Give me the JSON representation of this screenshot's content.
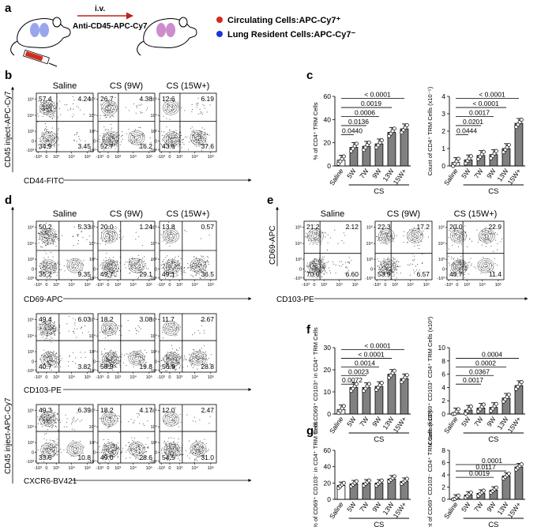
{
  "panel_labels": [
    "a",
    "b",
    "c",
    "d",
    "e",
    "f",
    "g"
  ],
  "panel_a": {
    "injection": "i.v.",
    "antibody": "Anti-CD45-APC-Cy7",
    "legend": [
      {
        "label": "Circulating Cells:APC-Cy7⁺",
        "color": "#d42a1e"
      },
      {
        "label": "Lung Resident Cells:APC-Cy7⁻",
        "color": "#1e35d6"
      }
    ]
  },
  "ticks_x": [
    "-10³",
    "0",
    "10³",
    "10⁴",
    "10⁵"
  ],
  "ticks_y": [
    "-10³",
    "0",
    "10³",
    "10⁴",
    "10⁵"
  ],
  "flow_titles": [
    "Saline",
    "CS (9W)",
    "CS (15W+)"
  ],
  "flow_ylabel_b": "CD45 inject-APC-Cy7",
  "flow_ylabel_d": "CD45 inject-APC-Cy7",
  "flow_ylabel_e": "CD69-APC",
  "xlabels": {
    "b": "CD44-FITC",
    "d1": "CD69-APC",
    "d2": "CD103-PE",
    "d3": "CXCR6-BV421",
    "e": "CD103-PE"
  },
  "flow": {
    "b": [
      [
        "57.4",
        "4.24",
        "34.9",
        "3.45"
      ],
      [
        "26.7",
        "4.38",
        "52.7",
        "16.2"
      ],
      [
        "12.6",
        "6.19",
        "43.6",
        "37.6"
      ]
    ],
    "d1": [
      [
        "50.2",
        "5.33",
        "35.2",
        "9.35"
      ],
      [
        "20.0",
        "1.24",
        "49.7",
        "29.1"
      ],
      [
        "13.8",
        "0.57",
        "49.1",
        "36.5"
      ]
    ],
    "d2": [
      [
        "49.4",
        "6.03",
        "40.7",
        "3.82"
      ],
      [
        "18.2",
        "3.08",
        "58.9",
        "19.8"
      ],
      [
        "11.7",
        "2.67",
        "56.9",
        "28.8"
      ]
    ],
    "d3": [
      [
        "49.3",
        "6.39",
        "33.6",
        "10.8"
      ],
      [
        "18.2",
        "4.17",
        "49.0",
        "28.6"
      ],
      [
        "12.0",
        "2.47",
        "54.5",
        "31.0"
      ]
    ],
    "e": [
      [
        "21.2",
        "2.12",
        "70.0",
        "6.60"
      ],
      [
        "22.3",
        "17.2",
        "53.9",
        "6.57"
      ],
      [
        "20.0",
        "22.9",
        "45.7",
        "11.4"
      ]
    ]
  },
  "bar_categories": [
    "Saline",
    "5W",
    "7W",
    "9W",
    "13W",
    "15W+"
  ],
  "group_label": "CS",
  "chart_data": [
    {
      "type": "bar",
      "panel": "c",
      "ylabel": "% of CD4⁺ TRM Cells",
      "ylim": [
        0,
        60
      ],
      "yticks": [
        "0",
        "20",
        "40",
        "60"
      ],
      "categories": [
        "Saline",
        "5W",
        "7W",
        "9W",
        "13W",
        "15W+"
      ],
      "values": [
        5,
        16,
        17,
        19,
        29,
        32
      ],
      "pvalues": [
        "0.0440",
        "0.0136",
        "0.0006",
        "0.0019",
        "< 0.0001"
      ]
    },
    {
      "type": "bar",
      "panel": "c",
      "ylabel": "Count of CD4⁺ TRM Cells (x10⁻⁵)",
      "ylim": [
        0,
        4
      ],
      "yticks": [
        "0",
        "1",
        "2",
        "3",
        "4"
      ],
      "categories": [
        "Saline",
        "5W",
        "7W",
        "9W",
        "13W",
        "15W+"
      ],
      "values": [
        0.2,
        0.35,
        0.6,
        0.65,
        1.0,
        2.45
      ],
      "pvalues": [
        "0.0444",
        "0.0201",
        "0.0017",
        "< 0.0001",
        "< 0.0001"
      ]
    },
    {
      "type": "bar",
      "panel": "f",
      "ylabel": "% of CD69⁺ CD103⁺ in CD4⁺ TRM Cells",
      "ylim": [
        0,
        30
      ],
      "yticks": [
        "0",
        "10",
        "20",
        "30"
      ],
      "categories": [
        "Saline",
        "5W",
        "7W",
        "9W",
        "13W",
        "15W+"
      ],
      "values": [
        2,
        12,
        12,
        12.5,
        18,
        16
      ],
      "pvalues": [
        "0.0072",
        "0.0023",
        "0.0014",
        "< 0.0001",
        "< 0.0001"
      ]
    },
    {
      "type": "bar",
      "panel": "f",
      "ylabel": "Count of CD69⁺ CD103⁺ CD4⁺ TRM Cells (x10³)",
      "ylim": [
        0,
        10
      ],
      "yticks": [
        "0",
        "2",
        "4",
        "6",
        "8",
        "10"
      ],
      "categories": [
        "Saline",
        "5W",
        "7W",
        "9W",
        "13W",
        "15W+"
      ],
      "values": [
        0.2,
        0.6,
        0.9,
        1.0,
        2.4,
        4.3
      ],
      "pvalues": [
        "0.0017",
        "0.0367",
        "0.0002",
        "0.0004"
      ]
    },
    {
      "type": "bar",
      "panel": "g",
      "ylabel": "% of CD69⁺ CD103⁻ in CD4⁺ TRM Cells",
      "ylim": [
        0,
        60
      ],
      "yticks": [
        "0",
        "20",
        "40",
        "60"
      ],
      "categories": [
        "Saline",
        "5W",
        "7W",
        "9W",
        "13W",
        "15W+"
      ],
      "values": [
        17,
        19,
        20,
        20,
        25,
        22
      ],
      "pvalues": []
    },
    {
      "type": "bar",
      "panel": "g",
      "ylabel": "Count of CD69⁺ CD103⁻ CD4⁺ TRM Cells (x10³)",
      "ylim": [
        0,
        8
      ],
      "yticks": [
        "0",
        "2",
        "4",
        "6",
        "8"
      ],
      "categories": [
        "Saline",
        "5W",
        "7W",
        "9W",
        "13W",
        "15W+"
      ],
      "values": [
        0.2,
        0.7,
        1.0,
        1.5,
        3.8,
        5.3
      ],
      "pvalues": [
        "0.0019",
        "0.0117",
        "0.0001"
      ]
    }
  ]
}
